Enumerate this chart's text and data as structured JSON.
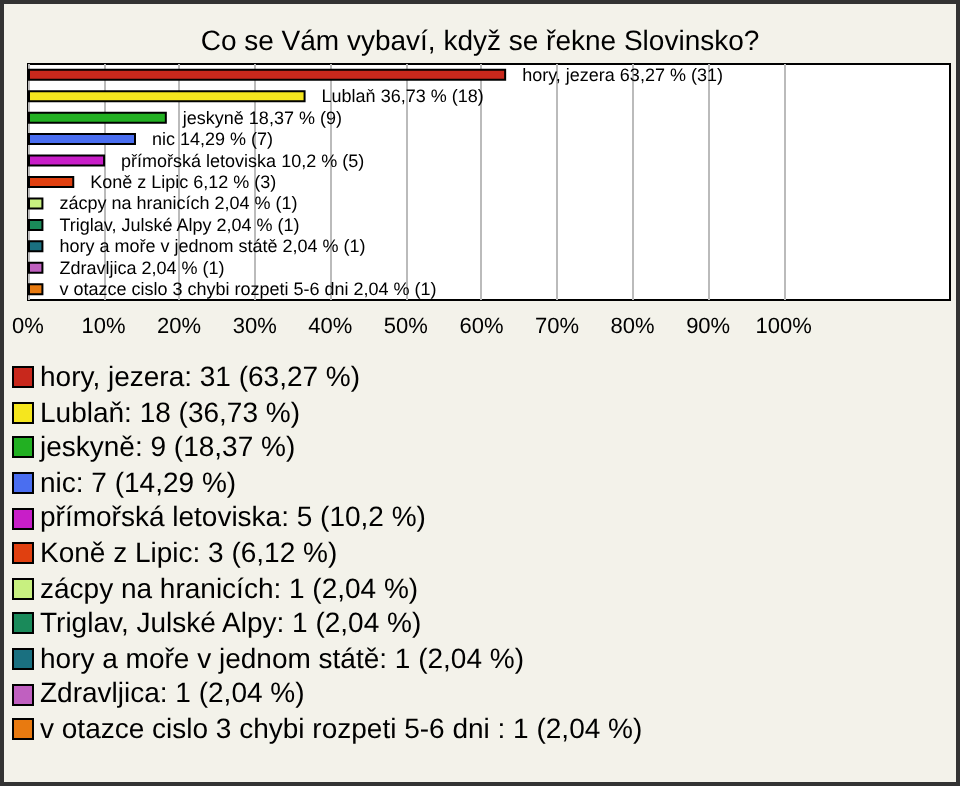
{
  "chart_data": {
    "type": "bar",
    "orientation": "horizontal",
    "title": "Co se Vám vybaví, když se řekne Slovinsko?",
    "categories": [
      "hory, jezera",
      "Lublaň",
      "jeskyně",
      "nic",
      "přímořská letoviska",
      "Koně z Lipic",
      "zácpy na hranicích",
      "Triglav, Julské Alpy",
      "hory a moře v jednom státě",
      "Zdravljica",
      "v otazce cislo 3 chybi rozpeti 5-6 dni"
    ],
    "values": [
      63.27,
      36.73,
      18.37,
      14.29,
      10.2,
      6.12,
      2.04,
      2.04,
      2.04,
      2.04,
      2.04
    ],
    "value_labels": [
      "63,27 % (31)",
      "36,73 % (18)",
      "18,37 % (9)",
      "14,29 % (7)",
      "10,2 % (5)",
      "6,12 % (3)",
      "2,04 % (1)",
      "2,04 % (1)",
      "2,04 % (1)",
      "2,04 % (1)",
      "2,04 % (1)"
    ],
    "colors": [
      "#c8281c",
      "#f5e61e",
      "#22b022",
      "#4a6ef0",
      "#c81ec8",
      "#e04010",
      "#c8f080",
      "#1a8a5a",
      "#1a7080",
      "#c060c0",
      "#e87a10"
    ],
    "xlim": [
      0,
      122
    ],
    "xticks": [
      {
        "value": 0,
        "label": "0%"
      },
      {
        "value": 10,
        "label": "10%"
      },
      {
        "value": 20,
        "label": "20%"
      },
      {
        "value": 30,
        "label": "30%"
      },
      {
        "value": 40,
        "label": "40%"
      },
      {
        "value": 50,
        "label": "50%"
      },
      {
        "value": 60,
        "label": "60%"
      },
      {
        "value": 70,
        "label": "70%"
      },
      {
        "value": 80,
        "label": "80%"
      },
      {
        "value": 90,
        "label": "90%"
      },
      {
        "value": 100,
        "label": "100%"
      }
    ],
    "grid": "x",
    "annotations": [
      "hory, jezera: 31 (63,27 %)",
      "Lublaň: 18 (36,73 %)",
      "jeskyně: 9 (18,37 %)",
      "nic: 7 (14,29 %)",
      "přímořská letoviska: 5 (10,2 %)",
      "Koně z Lipic: 3 (6,12 %)",
      "zácpy na hranicích: 1 (2,04 %)",
      "Triglav, Julské Alpy: 1 (2,04 %)",
      "hory a moře v jednom státě: 1 (2,04 %)",
      "Zdravljica: 1 (2,04 %)",
      "v otazce cislo 3 chybi rozpeti 5-6 dni : 1 (2,04 %)"
    ]
  }
}
